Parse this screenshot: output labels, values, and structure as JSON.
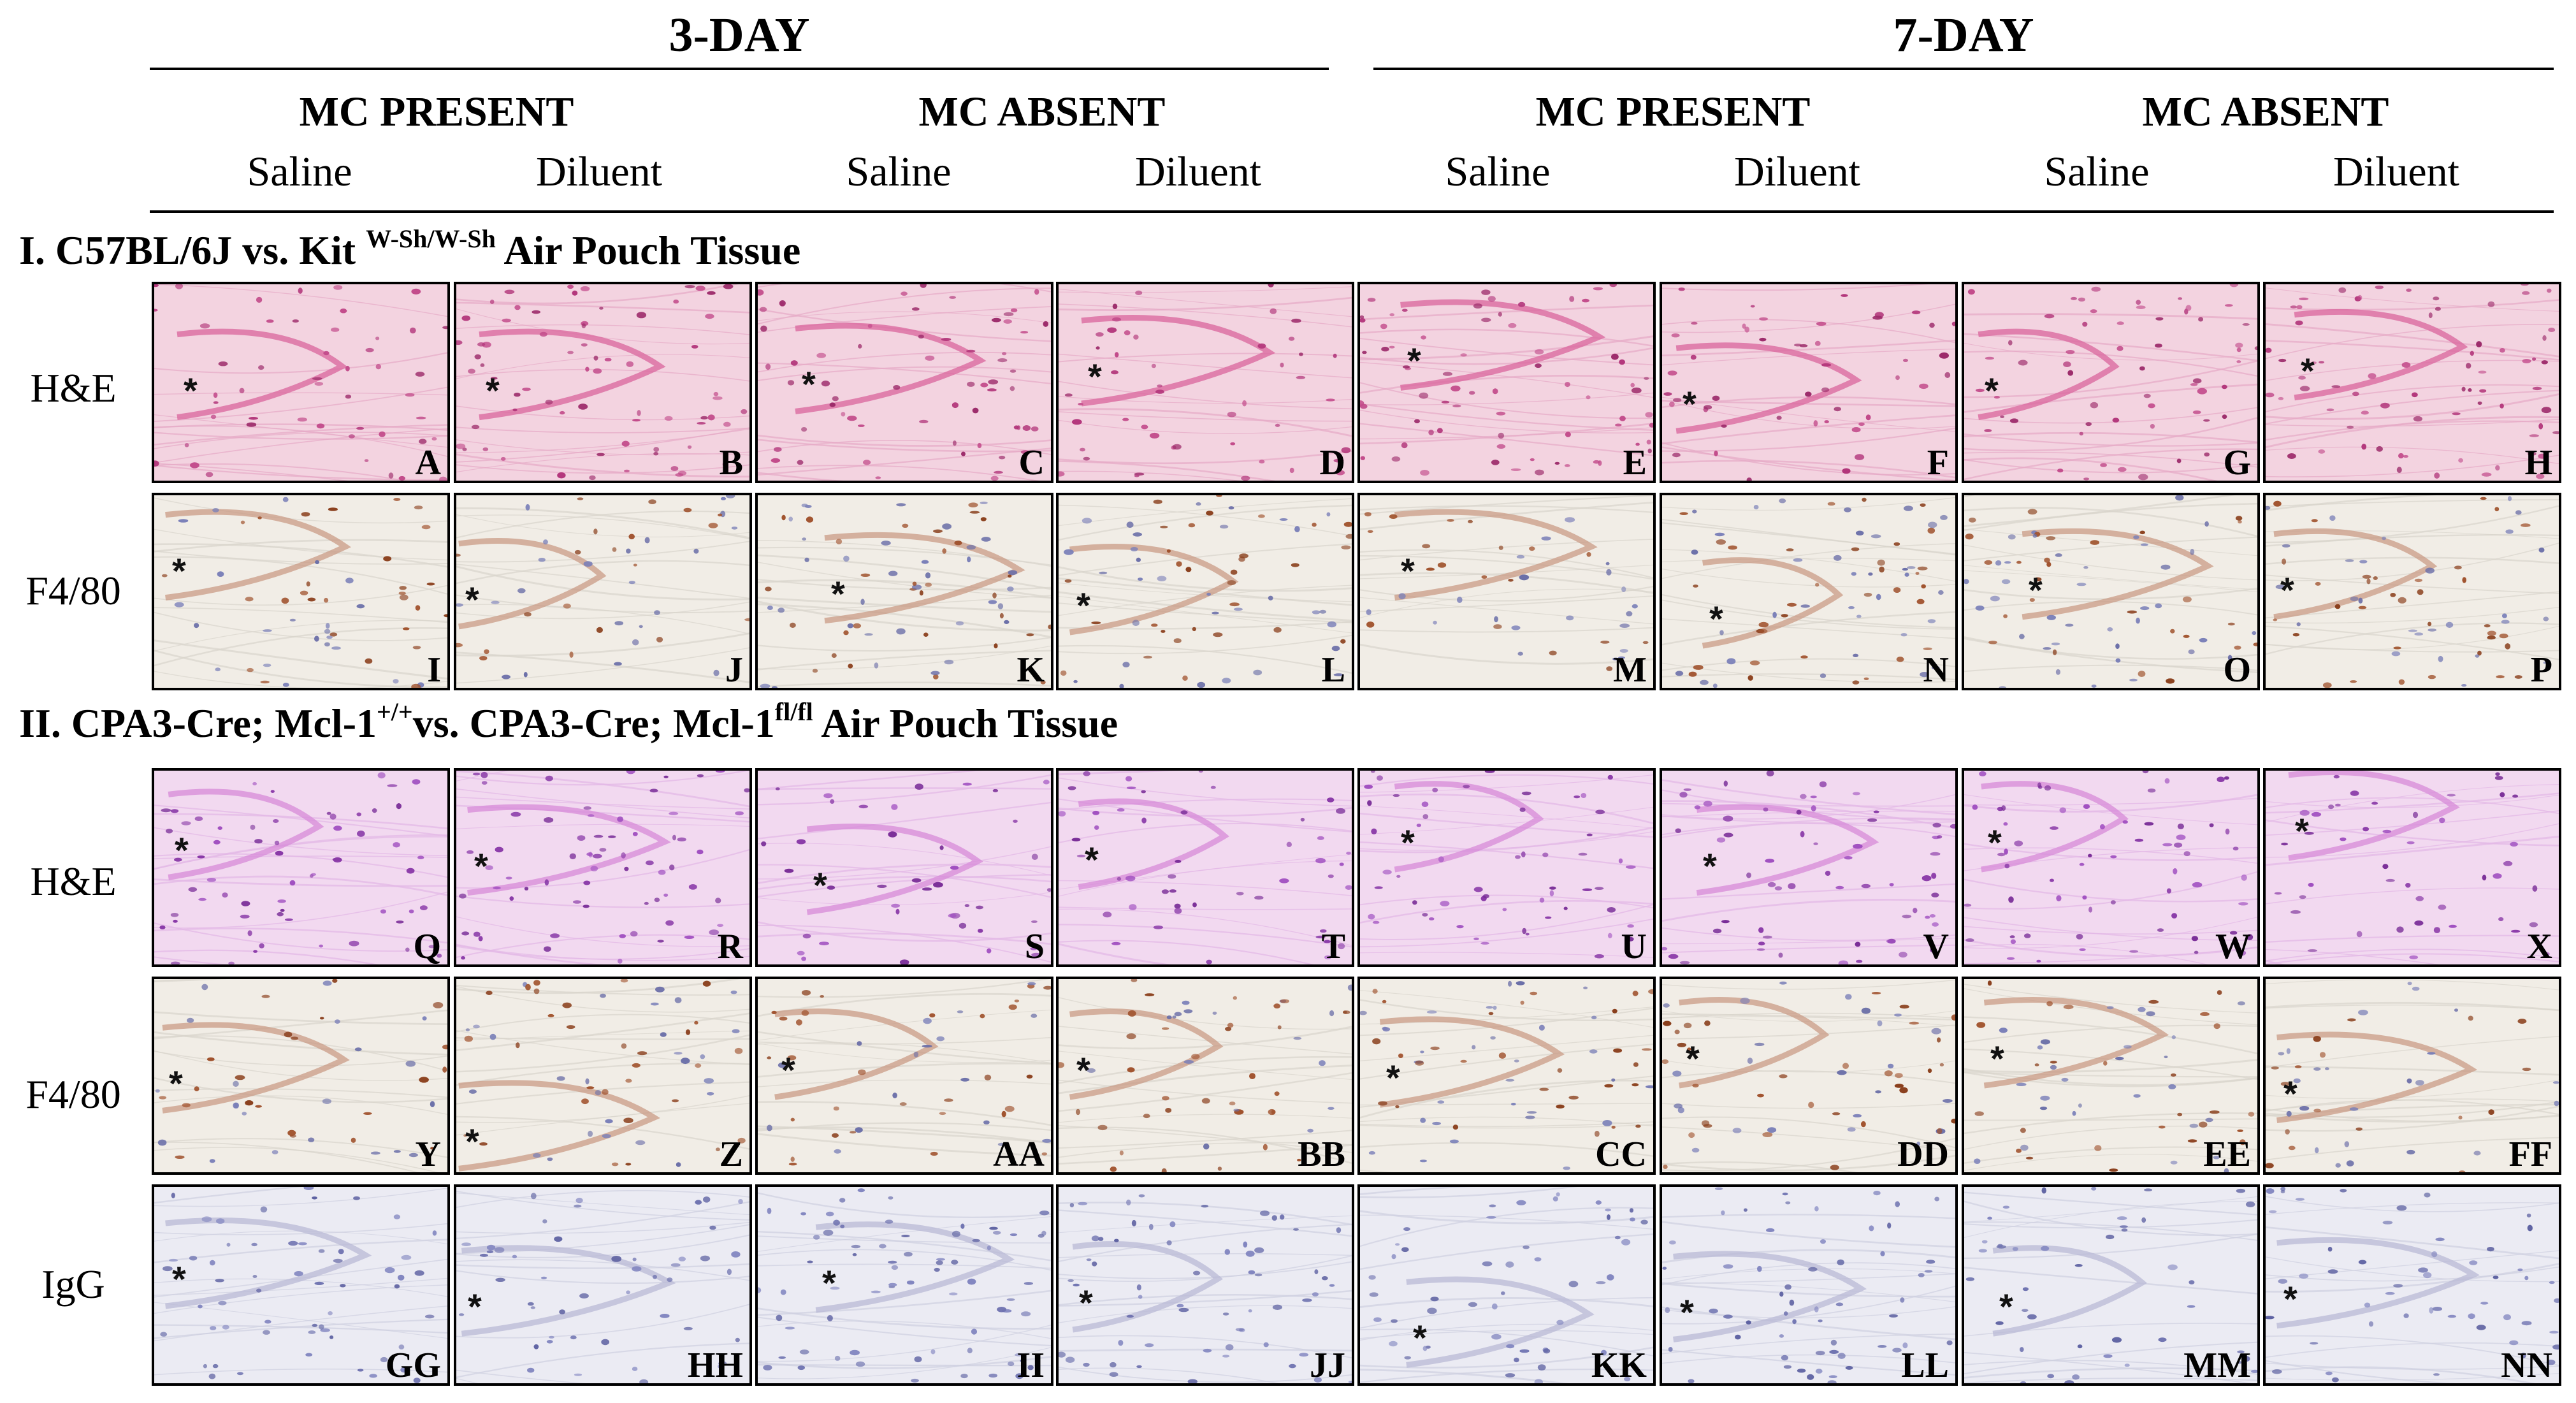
{
  "periods": [
    "3-DAY",
    "7-DAY"
  ],
  "mc_groups": [
    "MC PRESENT",
    "MC ABSENT",
    "MC PRESENT",
    "MC ABSENT"
  ],
  "treatments": [
    "Saline",
    "Diluent",
    "Saline",
    "Diluent",
    "Saline",
    "Diluent",
    "Saline",
    "Diluent"
  ],
  "section1": {
    "prefix": "I. C57BL/6J vs. Kit ",
    "sup": "W-Sh/W-Sh",
    "suffix": " Air Pouch Tissue"
  },
  "section2": {
    "part1": "II. CPA3-Cre; Mcl-1",
    "sup1": "+/+",
    "part2": "vs. CPA3-Cre; Mcl-1",
    "sup2": "fl/fl",
    "part3": " Air Pouch Tissue"
  },
  "row_labels": [
    "H&E",
    "F4/80",
    "H&E",
    "F4/80",
    "IgG"
  ],
  "asterisk": "*",
  "stains": {
    "he1": "#f3d3e0",
    "f480": "#f1ede6",
    "he2": "#f2d9f0",
    "igg": "#ebebf3"
  },
  "panel_letters": [
    [
      "A",
      "B",
      "C",
      "D",
      "E",
      "F",
      "G",
      "H"
    ],
    [
      "I",
      "J",
      "K",
      "L",
      "M",
      "N",
      "O",
      "P"
    ],
    [
      "Q",
      "R",
      "S",
      "T",
      "U",
      "V",
      "W",
      "X"
    ],
    [
      "Y",
      "Z",
      "AA",
      "BB",
      "CC",
      "DD",
      "EE",
      "FF"
    ],
    [
      "GG",
      "HH",
      "II",
      "JJ",
      "KK",
      "LL",
      "MM",
      "NN"
    ]
  ]
}
